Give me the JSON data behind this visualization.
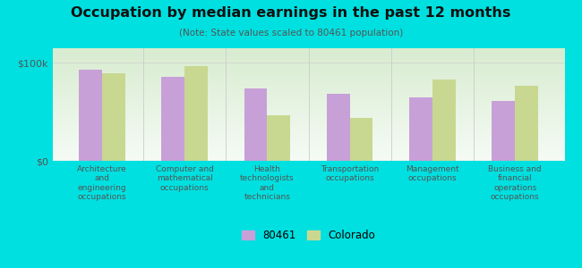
{
  "title": "Occupation by median earnings in the past 12 months",
  "subtitle": "(Note: State values scaled to 80461 population)",
  "background_outer": "#00e0e0",
  "background_inner_top": "#d8ecd0",
  "background_inner_bottom": "#f5fbf5",
  "categories": [
    "Architecture\nand\nengineering\noccupations",
    "Computer and\nmathematical\noccupations",
    "Health\ntechnologists\nand\ntechnicians",
    "Transportation\noccupations",
    "Management\noccupations",
    "Business and\nfinancial\noperations\noccupations"
  ],
  "values_80461": [
    93000,
    86000,
    74000,
    68000,
    65000,
    61000
  ],
  "values_colorado": [
    89000,
    97000,
    47000,
    44000,
    83000,
    77000
  ],
  "color_80461": "#c8a0d8",
  "color_colorado": "#c8d890",
  "legend_80461": "80461",
  "legend_colorado": "Colorado",
  "ylim": [
    0,
    115000
  ],
  "yticks": [
    0,
    100000
  ],
  "ytick_labels": [
    "$0",
    "$100k"
  ],
  "bar_width": 0.28
}
